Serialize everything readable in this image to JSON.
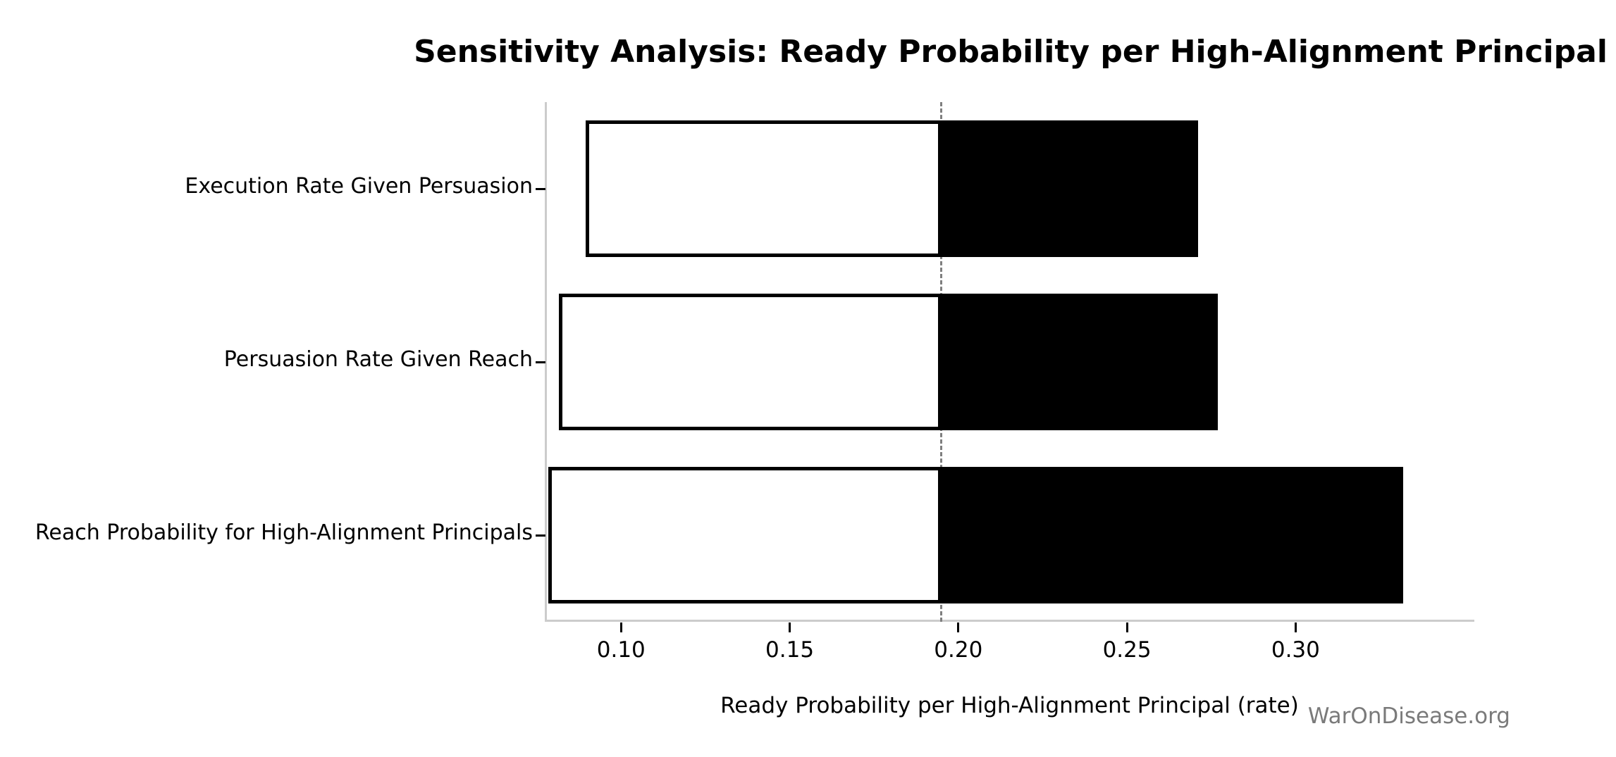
{
  "title": "Sensitivity Analysis: Ready Probability per High-Alignment Principal",
  "watermark": "WarOnDisease.org",
  "chart_data": {
    "type": "bar",
    "subtype": "tornado-sensitivity",
    "orientation": "horizontal",
    "title": "Sensitivity Analysis: Ready Probability per High-Alignment Principal",
    "xlabel": "Ready Probability per High-Alignment Principal (rate)",
    "ylabel": "",
    "categories_top_to_bottom": [
      "Execution Rate Given Persuasion",
      "Persuasion Rate Given Reach",
      "Reach Probability for High-Alignment Principals"
    ],
    "baseline": 0.195,
    "series": [
      {
        "name": "Execution Rate Given Persuasion",
        "low": 0.09,
        "high": 0.271
      },
      {
        "name": "Persuasion Rate Given Reach",
        "low": 0.082,
        "high": 0.277
      },
      {
        "name": "Reach Probability for High-Alignment Principals",
        "low": 0.079,
        "high": 0.332
      }
    ],
    "x_ticks": [
      0.1,
      0.15,
      0.2,
      0.25,
      0.3
    ],
    "x_tick_labels": [
      "0.10",
      "0.15",
      "0.20",
      "0.25",
      "0.30"
    ],
    "xlim": [
      0.078,
      0.353
    ],
    "grid": false,
    "legend": "none",
    "colors": {
      "low_fill": "#ffffff",
      "low_edge": "#000000",
      "high_fill": "#000000",
      "baseline_line": "#7f7f7f",
      "spine": "#cccccc",
      "tick": "#000000",
      "text": "#000000",
      "watermark": "#7a7a7a"
    }
  }
}
